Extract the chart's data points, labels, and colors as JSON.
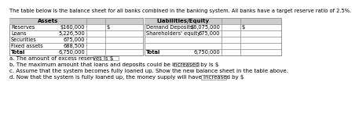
{
  "title_line1": "The table below is the balance sheet for all banks combined in the banking system. All banks have a target reserve ratio of 2.5%.",
  "assets_header": "Assets",
  "liabilities_header": "Liabilities/Equity",
  "assets_rows": [
    [
      "Reserves",
      "$160,000"
    ],
    [
      "Loans",
      "5,226,500"
    ],
    [
      "Securities",
      "675,000"
    ],
    [
      "Fixed assets",
      "688,500"
    ],
    [
      "Total",
      "6,750,000"
    ]
  ],
  "liabilities_rows": [
    [
      "Demand Deposits",
      "$6,075,000"
    ],
    [
      "Shareholders' equity",
      "675,000"
    ],
    [
      "",
      ""
    ],
    [
      "",
      ""
    ],
    [
      "Total",
      "6,750,000"
    ]
  ],
  "questions": [
    [
      "a. The amount of excess reserves is $",
      true
    ],
    [
      "b. The maximum amount that loans and deposits could be increased by is $",
      true
    ],
    [
      "c. Assume that the system becomes fully loaned up. Show the new balance sheet in the table above.",
      false
    ],
    [
      "d. Now that the system is fully loaned up, the money supply will have increased by $",
      true
    ]
  ],
  "bg_color": "#ffffff",
  "header_bg": "#cccccc",
  "text_color": "#000000",
  "font_size": 5.0,
  "title_font_size": 4.8,
  "question_font_size": 5.0,
  "line_color": "#888888"
}
